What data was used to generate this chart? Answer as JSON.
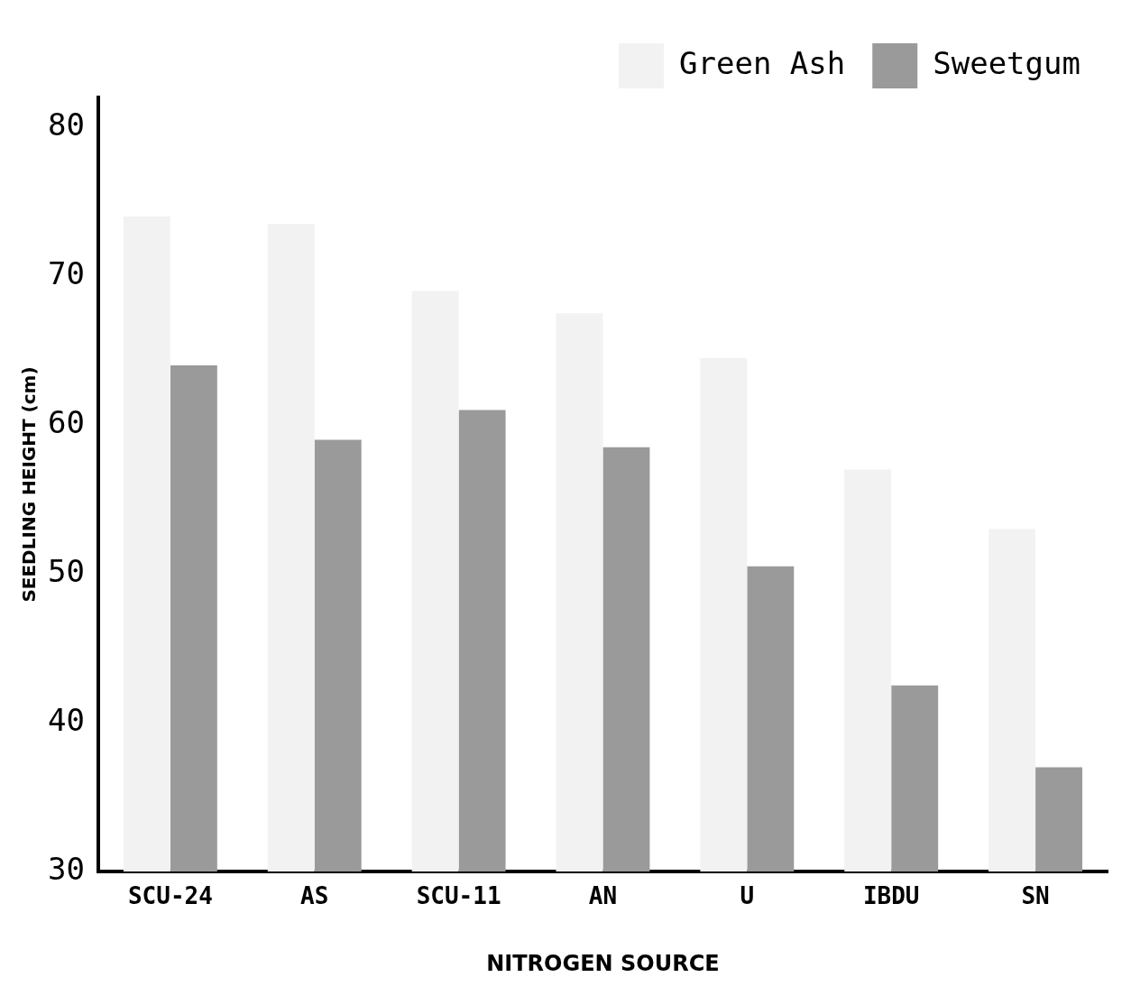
{
  "chart_data": {
    "type": "bar",
    "xlabel": "NITROGEN SOURCE",
    "ylabel": "SEEDLING HEIGHT (cm)",
    "categories": [
      "SCU-24",
      "AS",
      "SCU-11",
      "AN",
      "U",
      "IBDU",
      "SN"
    ],
    "series": [
      {
        "name": "Green Ash",
        "color": "#f2f2f2",
        "values": [
          74,
          73.5,
          69,
          67.5,
          64.5,
          57,
          53
        ]
      },
      {
        "name": "Sweetgum",
        "color": "#9a9a9a",
        "values": [
          64,
          59,
          61,
          58.5,
          50.5,
          42.5,
          37
        ]
      }
    ],
    "ylim": [
      30,
      82
    ],
    "yticks": [
      30,
      40,
      50,
      60,
      70,
      80
    ],
    "grid": false,
    "legend": "top right"
  }
}
